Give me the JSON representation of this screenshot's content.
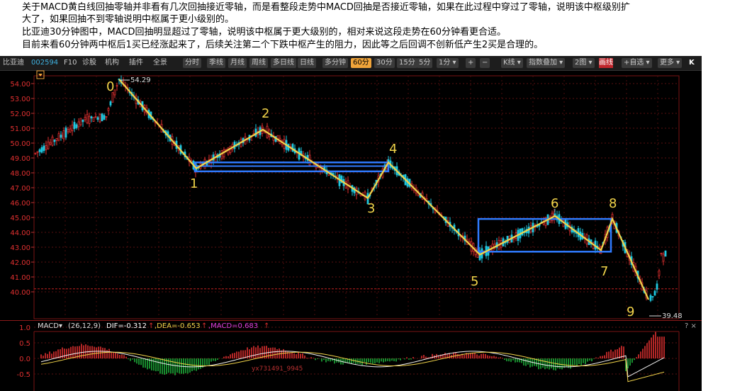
{
  "notes": [
    "关于MACD黄白线回抽零轴并非看有几次回抽接近零轴，而是看整段走势中MACD回抽是否接近零轴，如果在此过程中穿过了零轴，说明该中枢级别扩",
    "大了，如果回抽不到零轴说明中枢属于更小级别的。",
    "比亚迪30分钟图中，MACD回抽明显超过了零轴，说明该中枢属于更大级别的，相对来说这段走势在60分钟看更合适。",
    "目前来看60分钟两中枢后1买已经涨起来了，后续关注第二个下跌中枢产生的阻力，因此等之后回调不创新低产生2买是合理的。"
  ],
  "toolbar": {
    "stock_name": "比亚迪",
    "stock_code": "002594",
    "f10": "F10",
    "diagnose": "诊股",
    "institution": "机构",
    "plugin": "插件",
    "full_view": "全景",
    "periods": [
      "分时",
      "季线",
      "月线",
      "周线",
      "多日线",
      "日线",
      "多分钟",
      "60分",
      "30分",
      "15分",
      "5分",
      "1分 ▾"
    ],
    "active_period": "60分",
    "zoom_in": "+",
    "zoom_out": "−",
    "kline": "K线 ▾",
    "indicator_overlay": "指数叠加 ▾",
    "two_charts": "2图 ▾",
    "draw_line": "画线",
    "add_custom": "+自选 ▾",
    "more": "更多 ▾",
    "k_logo": "K"
  },
  "price_axis": [
    "54.00",
    "53.00",
    "52.00",
    "51.00",
    "50.00",
    "49.00",
    "48.00",
    "47.00",
    "46.00",
    "45.00",
    "44.00",
    "43.00",
    "42.00",
    "41.00",
    "40.00"
  ],
  "macd_axis": [
    "1.0",
    "0.5",
    "0.0",
    "-0.5"
  ],
  "high_label": "54.29",
  "low_label": "39.48",
  "markers": [
    "0",
    "1",
    "2",
    "3",
    "4",
    "5",
    "6",
    "7",
    "8",
    "9"
  ],
  "watermark": "yx731491_9945",
  "macd": {
    "name": "MACD▾",
    "params": "(26,12,9)",
    "dif": "DIF=-0.312",
    "dea": ",DEA=-0.653",
    "macd": ",MACD=0.683",
    "up_arrow": "↑",
    "right_ctrl": "? ×"
  },
  "chart_data": {
    "type": "candlestick-with-annotations",
    "symbol": "比亚迪 002594",
    "period": "60分",
    "ylim": [
      39.2,
      54.5
    ],
    "zigzag": [
      {
        "label": "0",
        "price": 54.29
      },
      {
        "label": "1",
        "price": 48.3
      },
      {
        "label": "2",
        "price": 50.9
      },
      {
        "label": "3",
        "price": 46.3
      },
      {
        "label": "4",
        "price": 48.7
      },
      {
        "label": "5",
        "price": 42.5
      },
      {
        "label": "6",
        "price": 45.1
      },
      {
        "label": "7",
        "price": 42.8
      },
      {
        "label": "8",
        "price": 44.9
      },
      {
        "label": "9",
        "price": 39.48
      }
    ],
    "pivot_boxes": [
      {
        "high": 48.7,
        "low": 48.1
      },
      {
        "high": 44.9,
        "low": 42.7
      }
    ],
    "current_price_line": 40.2,
    "colors": {
      "up": "#e03030",
      "down": "#1ec8e0",
      "zigzag": "#f2d44a",
      "box": "#2f7bff",
      "dif": "#f2f2f2",
      "dea": "#f2d44a",
      "macd_up": "#e03030",
      "macd_down": "#1fae3a"
    }
  }
}
